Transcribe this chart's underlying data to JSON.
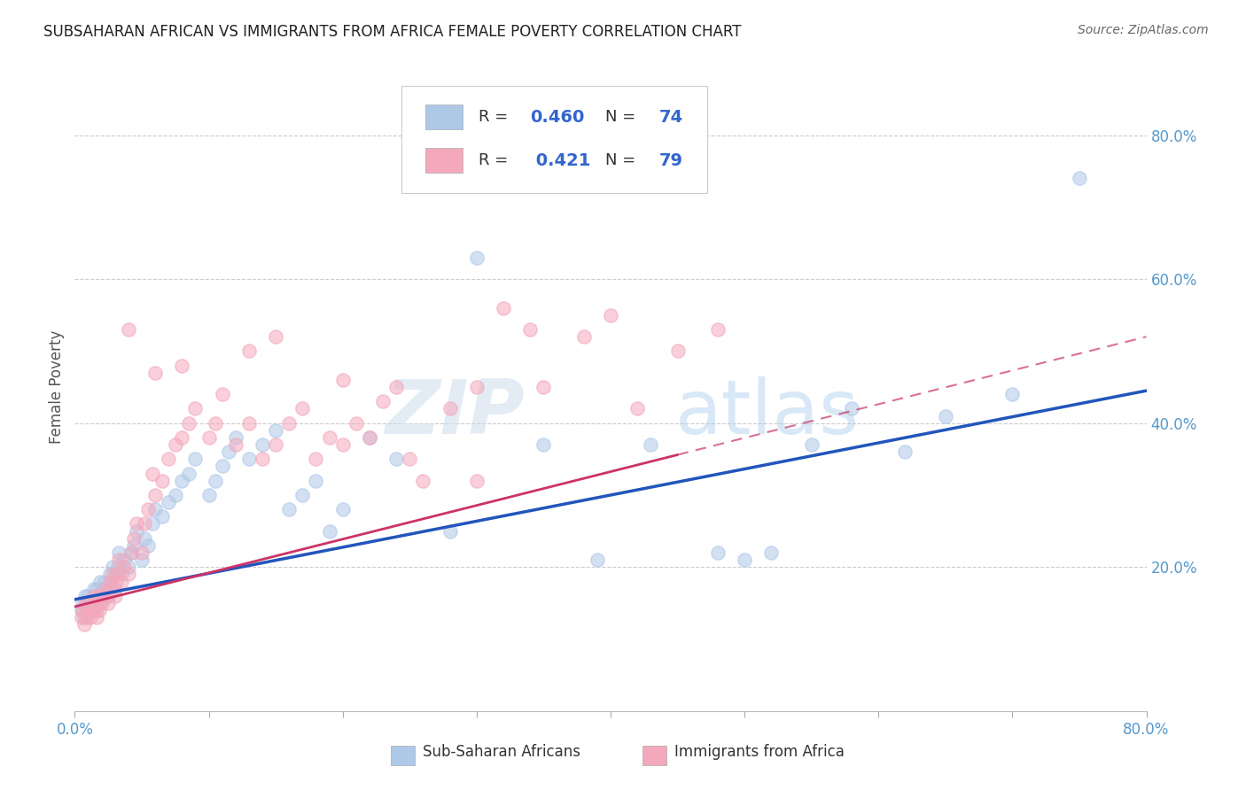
{
  "title": "SUBSAHARAN AFRICAN VS IMMIGRANTS FROM AFRICA FEMALE POVERTY CORRELATION CHART",
  "source": "Source: ZipAtlas.com",
  "ylabel": "Female Poverty",
  "blue_color": "#aec8e8",
  "pink_color": "#f4a8bc",
  "blue_line_color": "#2255bb",
  "pink_line_color": "#cc3366",
  "watermark_zip": "ZIP",
  "watermark_atlas": "atlas",
  "background_color": "#ffffff",
  "grid_color": "#cccccc",
  "tick_color": "#5599cc",
  "legend_text_color": "#333333",
  "legend_value_color": "#3366cc",
  "xlim": [
    0.0,
    0.8
  ],
  "ylim": [
    0.0,
    0.9
  ],
  "ytick_values": [
    0.2,
    0.4,
    0.6,
    0.8
  ],
  "ytick_labels": [
    "20.0%",
    "40.0%",
    "60.0%",
    "80.0%"
  ],
  "xtick_positions": [
    0.0,
    0.1,
    0.2,
    0.3,
    0.4,
    0.5,
    0.6,
    0.7,
    0.8
  ],
  "blue_x": [
    0.005,
    0.006,
    0.007,
    0.008,
    0.009,
    0.01,
    0.01,
    0.012,
    0.013,
    0.014,
    0.015,
    0.016,
    0.016,
    0.017,
    0.018,
    0.019,
    0.02,
    0.021,
    0.022,
    0.023,
    0.025,
    0.026,
    0.027,
    0.028,
    0.03,
    0.031,
    0.032,
    0.033,
    0.035,
    0.037,
    0.04,
    0.042,
    0.044,
    0.046,
    0.05,
    0.052,
    0.055,
    0.058,
    0.06,
    0.065,
    0.07,
    0.075,
    0.08,
    0.085,
    0.09,
    0.1,
    0.105,
    0.11,
    0.115,
    0.12,
    0.13,
    0.14,
    0.15,
    0.16,
    0.17,
    0.18,
    0.19,
    0.2,
    0.22,
    0.24,
    0.28,
    0.3,
    0.35,
    0.39,
    0.43,
    0.48,
    0.5,
    0.52,
    0.55,
    0.58,
    0.62,
    0.65,
    0.7,
    0.75
  ],
  "blue_y": [
    0.14,
    0.15,
    0.13,
    0.16,
    0.14,
    0.15,
    0.16,
    0.14,
    0.15,
    0.17,
    0.15,
    0.14,
    0.17,
    0.16,
    0.15,
    0.18,
    0.16,
    0.17,
    0.18,
    0.17,
    0.16,
    0.19,
    0.18,
    0.2,
    0.17,
    0.19,
    0.2,
    0.22,
    0.19,
    0.21,
    0.2,
    0.22,
    0.23,
    0.25,
    0.21,
    0.24,
    0.23,
    0.26,
    0.28,
    0.27,
    0.29,
    0.3,
    0.32,
    0.33,
    0.35,
    0.3,
    0.32,
    0.34,
    0.36,
    0.38,
    0.35,
    0.37,
    0.39,
    0.28,
    0.3,
    0.32,
    0.25,
    0.28,
    0.38,
    0.35,
    0.25,
    0.63,
    0.37,
    0.21,
    0.37,
    0.22,
    0.21,
    0.22,
    0.37,
    0.42,
    0.36,
    0.41,
    0.44,
    0.74
  ],
  "pink_x": [
    0.005,
    0.006,
    0.007,
    0.008,
    0.009,
    0.01,
    0.01,
    0.012,
    0.013,
    0.014,
    0.015,
    0.016,
    0.017,
    0.018,
    0.019,
    0.02,
    0.021,
    0.022,
    0.023,
    0.025,
    0.026,
    0.027,
    0.028,
    0.03,
    0.031,
    0.032,
    0.033,
    0.035,
    0.037,
    0.04,
    0.042,
    0.044,
    0.046,
    0.05,
    0.052,
    0.055,
    0.058,
    0.06,
    0.065,
    0.07,
    0.075,
    0.08,
    0.085,
    0.09,
    0.1,
    0.105,
    0.11,
    0.12,
    0.13,
    0.14,
    0.15,
    0.16,
    0.17,
    0.18,
    0.19,
    0.2,
    0.21,
    0.22,
    0.23,
    0.24,
    0.25,
    0.26,
    0.28,
    0.3,
    0.32,
    0.34,
    0.35,
    0.38,
    0.4,
    0.42,
    0.45,
    0.48,
    0.3,
    0.15,
    0.06,
    0.04,
    0.08,
    0.13,
    0.2
  ],
  "pink_y": [
    0.13,
    0.14,
    0.12,
    0.15,
    0.13,
    0.14,
    0.15,
    0.13,
    0.14,
    0.16,
    0.14,
    0.13,
    0.15,
    0.14,
    0.16,
    0.15,
    0.16,
    0.17,
    0.16,
    0.15,
    0.18,
    0.17,
    0.19,
    0.16,
    0.18,
    0.19,
    0.21,
    0.18,
    0.2,
    0.19,
    0.22,
    0.24,
    0.26,
    0.22,
    0.26,
    0.28,
    0.33,
    0.3,
    0.32,
    0.35,
    0.37,
    0.38,
    0.4,
    0.42,
    0.38,
    0.4,
    0.44,
    0.37,
    0.4,
    0.35,
    0.37,
    0.4,
    0.42,
    0.35,
    0.38,
    0.37,
    0.4,
    0.38,
    0.43,
    0.45,
    0.35,
    0.32,
    0.42,
    0.32,
    0.56,
    0.53,
    0.45,
    0.52,
    0.55,
    0.42,
    0.5,
    0.53,
    0.45,
    0.52,
    0.47,
    0.53,
    0.48,
    0.5,
    0.46
  ],
  "blue_line_x0": 0.0,
  "blue_line_x1": 0.8,
  "blue_line_y0": 0.155,
  "blue_line_y1": 0.445,
  "pink_line_x0": 0.0,
  "pink_line_x1": 0.8,
  "pink_line_y0": 0.145,
  "pink_line_y1": 0.52
}
